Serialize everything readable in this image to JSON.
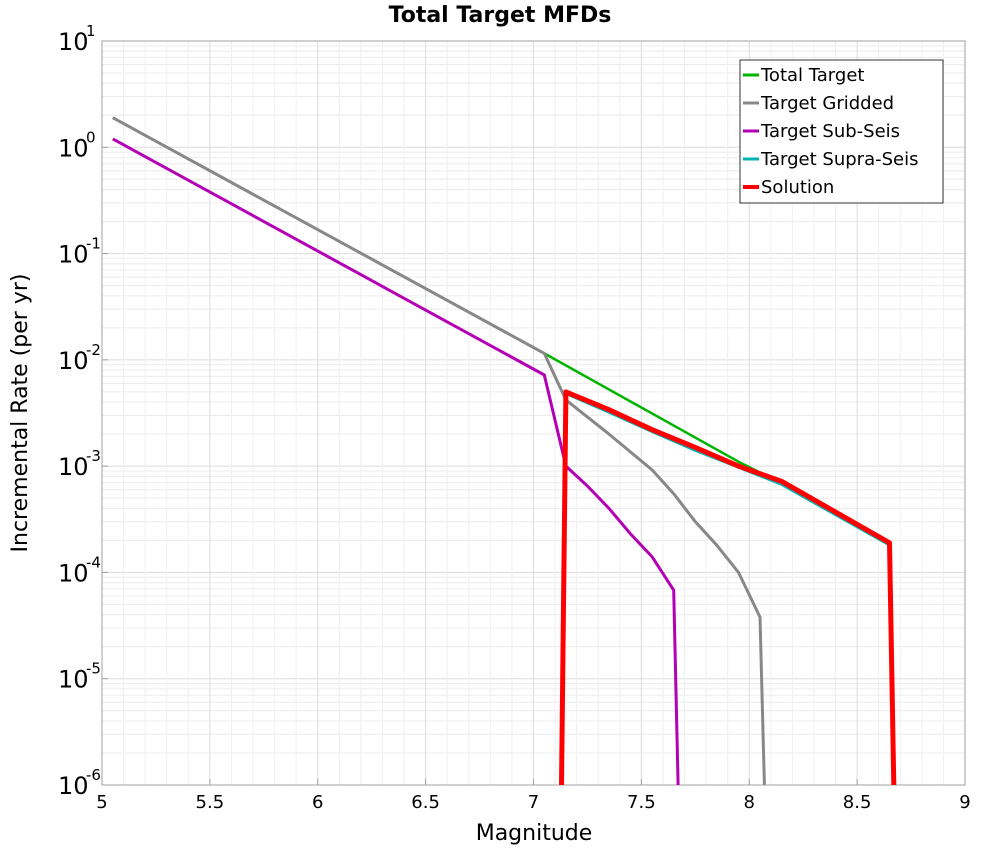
{
  "chart_data": {
    "type": "line",
    "title": "Total Target MFDs",
    "xlabel": "Magnitude",
    "ylabel": "Incremental Rate (per yr)",
    "xlim": [
      5,
      9
    ],
    "ylim": [
      1e-06,
      10
    ],
    "yscale": "log",
    "grid": true,
    "legend_position": "top-right",
    "xticks": [
      "5",
      "5.5",
      "6",
      "6.5",
      "7",
      "7.5",
      "8",
      "8.5",
      "9"
    ],
    "yticks": [
      {
        "base": "10",
        "exp": "1"
      },
      {
        "base": "10",
        "exp": "0"
      },
      {
        "base": "10",
        "exp": "-1"
      },
      {
        "base": "10",
        "exp": "-2"
      },
      {
        "base": "10",
        "exp": "-3"
      },
      {
        "base": "10",
        "exp": "-4"
      },
      {
        "base": "10",
        "exp": "-5"
      },
      {
        "base": "10",
        "exp": "-6"
      }
    ],
    "series": [
      {
        "name": "Total Target",
        "color": "#00b400",
        "width": 2.5,
        "points": [
          [
            5.05,
            1.9
          ],
          [
            7.05,
            0.0115
          ],
          [
            7.95,
            0.0011
          ],
          [
            8.15,
            0.00069
          ],
          [
            8.65,
            0.00019
          ]
        ]
      },
      {
        "name": "Target Gridded",
        "color": "#888888",
        "width": 3,
        "points": [
          [
            5.05,
            1.9
          ],
          [
            7.05,
            0.0115
          ],
          [
            7.15,
            0.0042
          ],
          [
            7.35,
            0.002
          ],
          [
            7.55,
            0.00092
          ],
          [
            7.65,
            0.00055
          ],
          [
            7.75,
            0.0003
          ],
          [
            7.85,
            0.00018
          ],
          [
            7.95,
            0.0001
          ],
          [
            8.05,
            3.8e-05
          ],
          [
            8.07,
            1e-06
          ]
        ]
      },
      {
        "name": "Target Sub-Seis",
        "color": "#b400b4",
        "width": 3,
        "points": [
          [
            5.05,
            1.2
          ],
          [
            7.05,
            0.0072
          ],
          [
            7.15,
            0.001
          ],
          [
            7.25,
            0.00065
          ],
          [
            7.35,
            0.0004
          ],
          [
            7.45,
            0.00023
          ],
          [
            7.55,
            0.00014
          ],
          [
            7.65,
            6.8e-05
          ],
          [
            7.67,
            1e-06
          ]
        ]
      },
      {
        "name": "Target Supra-Seis",
        "color": "#00b4b4",
        "width": 2.5,
        "points": [
          [
            7.13,
            1e-06
          ],
          [
            7.15,
            0.0048
          ],
          [
            7.35,
            0.0032
          ],
          [
            7.55,
            0.0021
          ],
          [
            7.75,
            0.0014
          ],
          [
            7.95,
            0.00097
          ],
          [
            8.15,
            0.00067
          ],
          [
            8.65,
            0.00018
          ],
          [
            8.67,
            1e-06
          ]
        ]
      },
      {
        "name": "Solution",
        "color": "#ff0000",
        "width": 5,
        "points": [
          [
            7.13,
            1e-06
          ],
          [
            7.15,
            0.005
          ],
          [
            7.35,
            0.0034
          ],
          [
            7.55,
            0.0022
          ],
          [
            7.75,
            0.0015
          ],
          [
            7.95,
            0.001
          ],
          [
            8.15,
            0.00072
          ],
          [
            8.65,
            0.00019
          ],
          [
            8.67,
            1e-06
          ]
        ]
      }
    ]
  }
}
